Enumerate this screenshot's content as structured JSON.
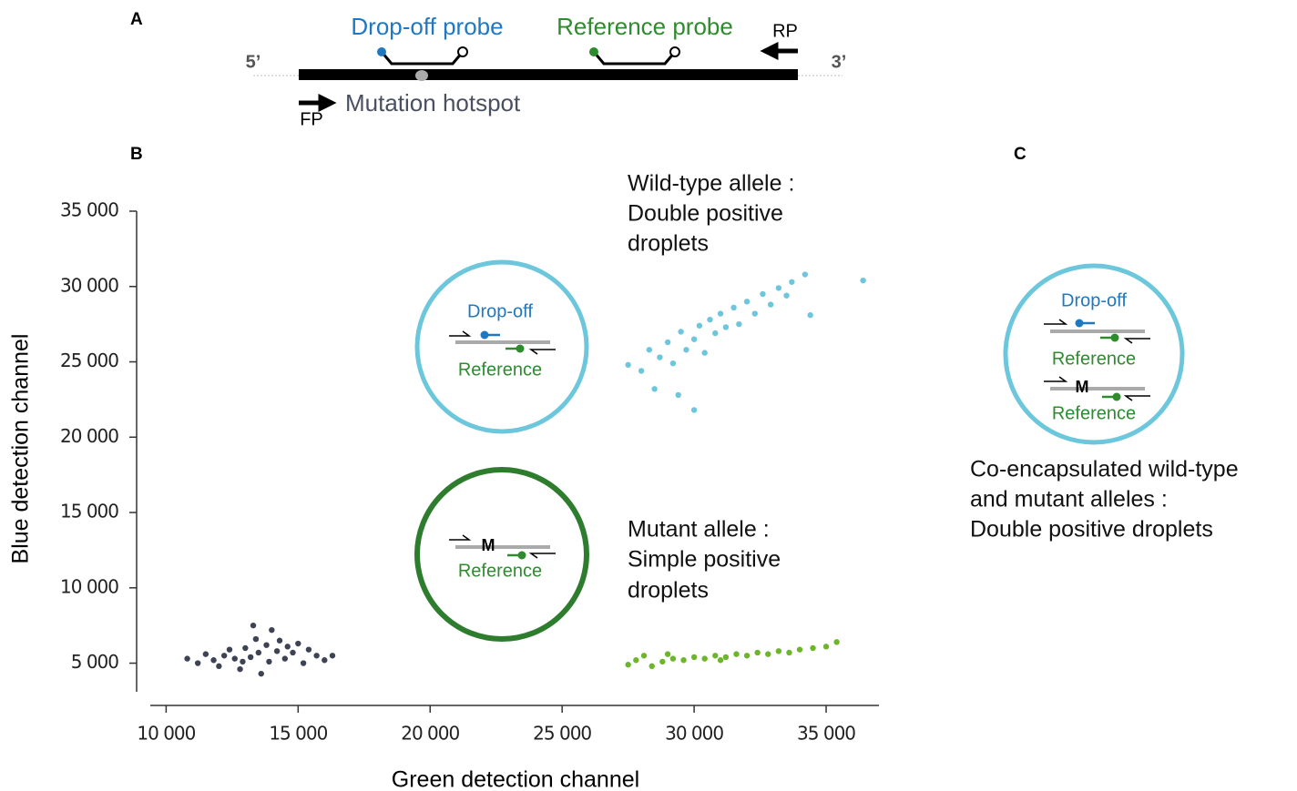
{
  "panel_a": {
    "label": "A",
    "drop_off_probe": "Drop-off probe",
    "reference_probe": "Reference probe",
    "rp": "RP",
    "five_prime": "5’",
    "three_prime": "3’",
    "fp": "FP",
    "hotspot": "Mutation hotspot"
  },
  "panel_b": {
    "label": "B",
    "circle_wt": {
      "drop_off": "Drop-off",
      "reference": "Reference"
    },
    "circle_mut": {
      "m": "M",
      "reference": "Reference"
    }
  },
  "panel_c": {
    "label": "C",
    "drop_off": "Drop-off",
    "reference_1": "Reference",
    "m": "M",
    "reference_2": "Reference",
    "caption": [
      "Co-encapsulated wild-type",
      "and mutant alleles :",
      "Double positive droplets"
    ]
  },
  "chart_data": {
    "type": "scatter",
    "x_label": "Green detection channel",
    "y_label": "Blue detection channel",
    "annotations": [
      [
        "Wild-type allele :",
        "Double positive",
        "droplets"
      ],
      [
        "Mutant allele :",
        "Simple positive",
        "droplets"
      ]
    ],
    "xlim": [
      9400,
      37000
    ],
    "ylim": [
      3100,
      35000
    ],
    "xticks": [
      {
        "value": 10000,
        "label": "10 000"
      },
      {
        "value": 15000,
        "label": "15 000"
      },
      {
        "value": 20000,
        "label": "20 000"
      },
      {
        "value": 25000,
        "label": "25 000"
      },
      {
        "value": 30000,
        "label": "30 000"
      },
      {
        "value": 35000,
        "label": "35 000"
      }
    ],
    "yticks": [
      {
        "value": 5000,
        "label": "5 000"
      },
      {
        "value": 10000,
        "label": "10 000"
      },
      {
        "value": 15000,
        "label": "15 000"
      },
      {
        "value": 20000,
        "label": "20 000"
      },
      {
        "value": 25000,
        "label": "25 000"
      },
      {
        "value": 30000,
        "label": "30 000"
      },
      {
        "value": 35000,
        "label": "35 000"
      }
    ],
    "series": [
      {
        "color": "#3e4354",
        "x": [
          10800,
          11200,
          11500,
          11800,
          12000,
          12200,
          12400,
          12600,
          12800,
          13000,
          13200,
          13400,
          13500,
          13600,
          13800,
          13900,
          14000,
          14200,
          14300,
          14500,
          14600,
          14800,
          15000,
          15200,
          15400,
          15700,
          16000,
          16300,
          13300,
          12900
        ],
        "values": [
          5300,
          5000,
          5600,
          5200,
          4800,
          5500,
          5900,
          5300,
          4600,
          6000,
          5400,
          6600,
          5700,
          4300,
          6200,
          5100,
          7200,
          5800,
          6500,
          5300,
          6100,
          5700,
          6300,
          5000,
          5900,
          5500,
          5200,
          5500,
          7500,
          5100
        ]
      },
      {
        "color": "#6ec6dc",
        "x": [
          27500,
          28000,
          28300,
          28700,
          29000,
          29200,
          29500,
          29700,
          30000,
          30200,
          30400,
          30600,
          30800,
          31000,
          31200,
          31500,
          31700,
          32000,
          32300,
          32600,
          32900,
          33200,
          33500,
          33700,
          34200,
          34400,
          30000,
          29400,
          36400,
          28500
        ],
        "values": [
          24800,
          24400,
          25800,
          25300,
          26300,
          24900,
          27000,
          25800,
          26500,
          27400,
          25600,
          27800,
          26900,
          28200,
          27300,
          28600,
          27500,
          29000,
          28200,
          29500,
          28800,
          29900,
          29400,
          30300,
          30800,
          28100,
          21800,
          22800,
          30400,
          23200
        ]
      },
      {
        "color": "#6db52b",
        "x": [
          27500,
          27800,
          28100,
          28400,
          28800,
          29200,
          29600,
          30000,
          30400,
          30800,
          31200,
          31600,
          32000,
          32400,
          32800,
          33200,
          33600,
          34000,
          34500,
          35000,
          35400,
          29000,
          31000
        ],
        "values": [
          4900,
          5200,
          5500,
          4800,
          5100,
          5300,
          5200,
          5400,
          5300,
          5500,
          5400,
          5600,
          5500,
          5700,
          5600,
          5800,
          5700,
          5900,
          6000,
          6100,
          6400,
          5600,
          5200
        ]
      }
    ]
  }
}
